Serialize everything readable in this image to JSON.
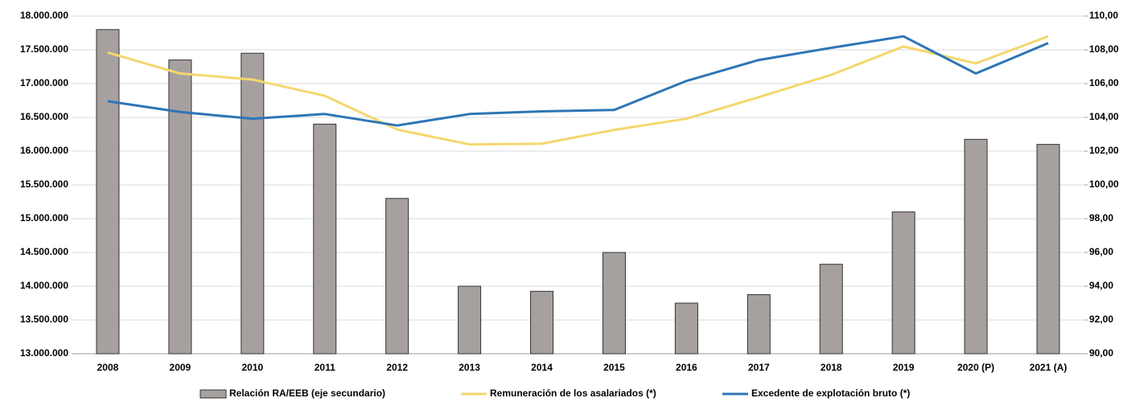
{
  "chart_data": {
    "type": "bar-line",
    "categories": [
      "2008",
      "2009",
      "2010",
      "2011",
      "2012",
      "2013",
      "2014",
      "2015",
      "2016",
      "2017",
      "2018",
      "2019",
      "2020 (P)",
      "2021 (A)"
    ],
    "series": [
      {
        "name": "Relación RA/EEB (eje secundario)",
        "type": "bar",
        "axis": "y2",
        "color": "#a6a19f",
        "values": [
          109.2,
          107.4,
          107.8,
          103.6,
          99.2,
          94.0,
          93.7,
          96.0,
          93.0,
          93.5,
          95.3,
          98.4,
          102.7,
          102.4
        ]
      },
      {
        "name": "Remuneración de los asalariados (*)",
        "type": "line",
        "color": "#f5d76e",
        "values": [
          17460000,
          17150000,
          17060000,
          16820000,
          16320000,
          16100000,
          16110000,
          16315000,
          16480000,
          16800000,
          17130000,
          17550000,
          17300000,
          17700000
        ]
      },
      {
        "name": "Excedente de explotación bruto (*)",
        "type": "line",
        "color": "#2e75b6",
        "values": [
          16740000,
          16580000,
          16480000,
          16550000,
          16380000,
          16550000,
          16590000,
          16610000,
          17040000,
          17350000,
          17530000,
          17700000,
          17150000,
          17600000
        ]
      }
    ],
    "ylim": [
      13000000,
      18000000
    ],
    "yticks": [
      {
        "value": 13000000,
        "label": "13.000.000"
      },
      {
        "value": 13500000,
        "label": "13.500.000"
      },
      {
        "value": 14000000,
        "label": "14.000.000"
      },
      {
        "value": 14500000,
        "label": "14.500.000"
      },
      {
        "value": 15000000,
        "label": "15.000.000"
      },
      {
        "value": 15500000,
        "label": "15.500.000"
      },
      {
        "value": 16000000,
        "label": "16.000.000"
      },
      {
        "value": 16500000,
        "label": "16.500.000"
      },
      {
        "value": 17000000,
        "label": "17.000.000"
      },
      {
        "value": 17500000,
        "label": "17.500.000"
      },
      {
        "value": 18000000,
        "label": "18.000.000"
      }
    ],
    "y2lim": [
      90,
      110
    ],
    "y2ticks": [
      {
        "value": 90,
        "label": "90,00"
      },
      {
        "value": 92,
        "label": "92,00"
      },
      {
        "value": 94,
        "label": "94,00"
      },
      {
        "value": 96,
        "label": "96,00"
      },
      {
        "value": 98,
        "label": "98,00"
      },
      {
        "value": 100,
        "label": "100,00"
      },
      {
        "value": 102,
        "label": "102,00"
      },
      {
        "value": 104,
        "label": "104,00"
      },
      {
        "value": 106,
        "label": "106,00"
      },
      {
        "value": 108,
        "label": "108,00"
      },
      {
        "value": 110,
        "label": "110,00"
      }
    ],
    "grid": true,
    "legend": "bottom"
  }
}
